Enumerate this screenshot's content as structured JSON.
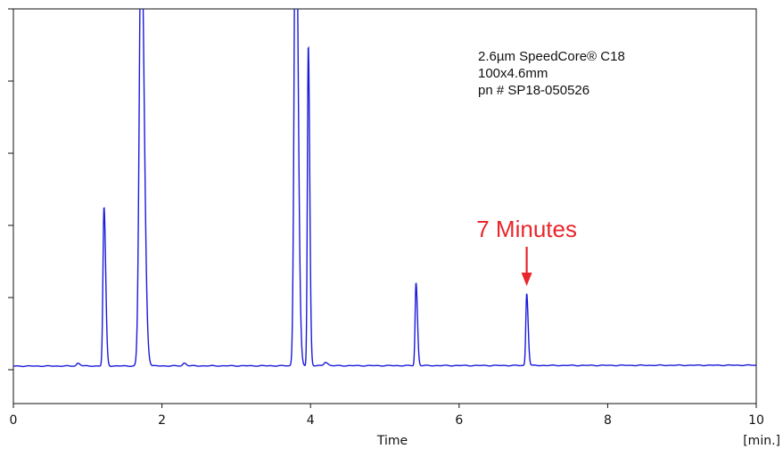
{
  "chart_data": {
    "type": "line",
    "title": "",
    "xlabel": "Time",
    "xunit": "[min.]",
    "ylabel": "",
    "xlim": [
      0,
      10
    ],
    "ylim": [
      0,
      100
    ],
    "xticks": [
      0,
      2,
      4,
      6,
      8,
      10
    ],
    "xtick_labels": [
      "0",
      "2",
      "4",
      "6",
      "8",
      "10"
    ],
    "yticks": [
      0,
      20,
      40,
      60,
      80,
      100
    ],
    "grid": false,
    "line_color": "#1a1adb",
    "baseline": 1,
    "peaks": [
      {
        "rt": 0.87,
        "height": 0.8,
        "width": 0.018
      },
      {
        "rt": 1.22,
        "height": 44,
        "width": 0.014
      },
      {
        "rt": 1.72,
        "height": 125,
        "width": 0.025
      },
      {
        "rt": 2.3,
        "height": 0.8,
        "width": 0.018
      },
      {
        "rt": 3.8,
        "height": 145,
        "width": 0.02
      },
      {
        "rt": 3.97,
        "height": 89,
        "width": 0.012
      },
      {
        "rt": 4.2,
        "height": 1.0,
        "width": 0.02
      },
      {
        "rt": 5.42,
        "height": 23,
        "width": 0.012
      },
      {
        "rt": 6.91,
        "height": 20,
        "width": 0.012
      }
    ],
    "info_lines": [
      "2.6µm SpeedCore® C18",
      "100x4.6mm",
      "pn # SP18-050526"
    ],
    "annotation": {
      "text": "7 Minutes",
      "x": 6.91,
      "color": "#e8262b"
    }
  }
}
